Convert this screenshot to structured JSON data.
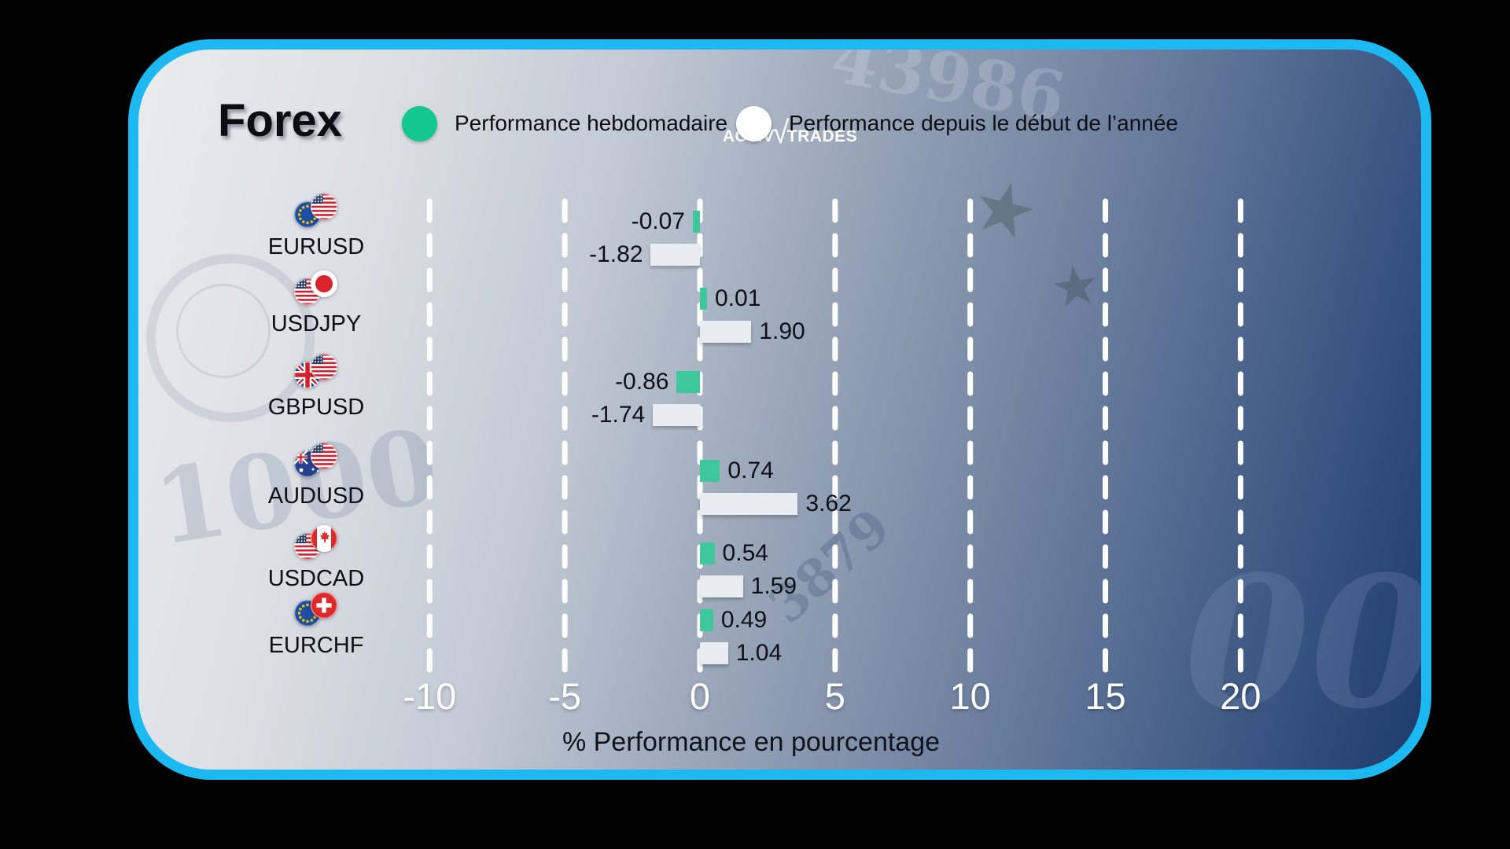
{
  "brand": {
    "logo_part1": "Activ",
    "logo_part2": "Trades",
    "logo_tick": "√"
  },
  "title": "Forex",
  "legend": [
    {
      "label": "Performance hebdomadaire",
      "color": "#12c88e"
    },
    {
      "label": "Performance depuis le début de l’année",
      "color": "#ffffff"
    }
  ],
  "colors": {
    "card_border": "#1cb8f2",
    "bar_weekly": "#3ec79a",
    "bar_ytd": "#e9edf2",
    "gridline": "#ffffff",
    "outside_background": "#000000"
  },
  "chart_data": {
    "type": "bar",
    "orientation": "horizontal",
    "title": "Forex",
    "categories": [
      "EURUSD",
      "USDJPY",
      "GBPUSD",
      "AUDUSD",
      "USDCAD",
      "EURCHF"
    ],
    "flags": [
      [
        "eu",
        "us"
      ],
      [
        "us",
        "jp"
      ],
      [
        "gb",
        "us"
      ],
      [
        "au",
        "us"
      ],
      [
        "us",
        "ca"
      ],
      [
        "eu",
        "ch"
      ]
    ],
    "series": [
      {
        "name": "Performance hebdomadaire",
        "color": "#3ec79a",
        "values": [
          -0.07,
          0.01,
          -0.86,
          0.74,
          0.54,
          0.49
        ]
      },
      {
        "name": "Performance depuis le début de l’année",
        "color": "#e9edf2",
        "values": [
          -1.82,
          1.9,
          -1.74,
          3.62,
          1.59,
          1.04
        ]
      }
    ],
    "x_ticks": [
      -10,
      -5,
      0,
      5,
      10,
      15,
      20
    ],
    "xlabel": "% Performance en pourcentage",
    "xlim": [
      -12,
      22
    ],
    "grid": "dashed-vertical-white",
    "legend_position": "top"
  },
  "background_watermarks": [
    "1000",
    "43986",
    "00",
    "3879"
  ]
}
